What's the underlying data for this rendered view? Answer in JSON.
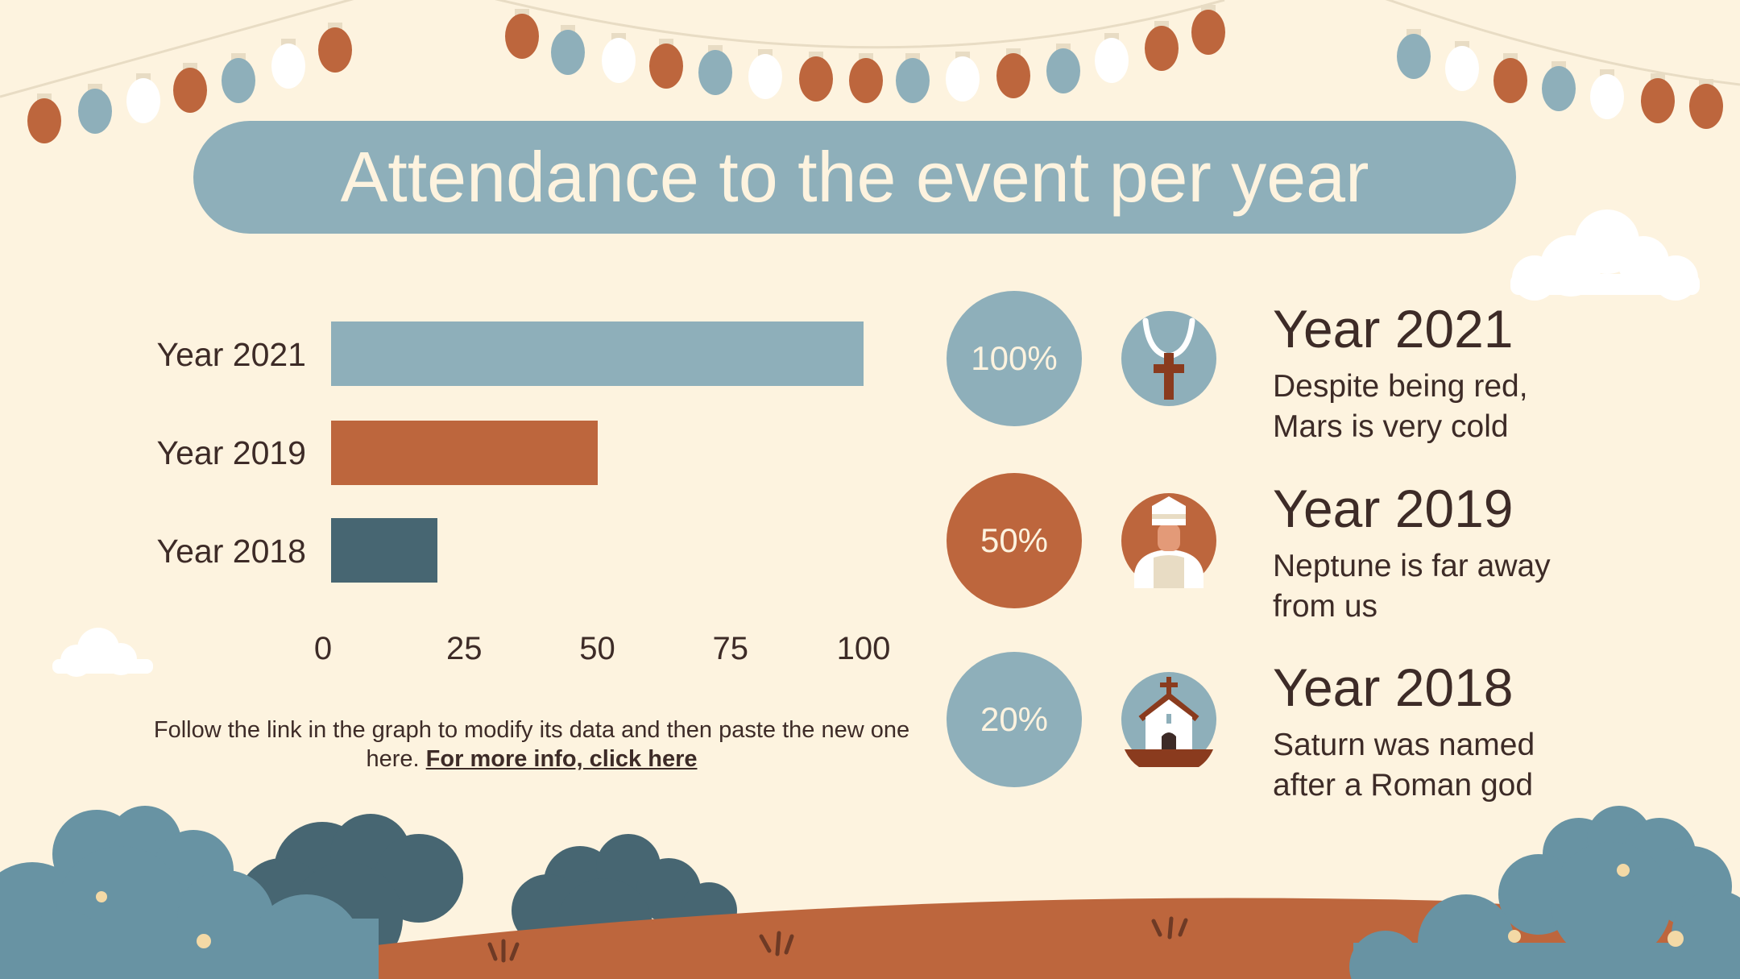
{
  "title": "Attendance to the event per year",
  "chart_data": {
    "type": "bar",
    "orientation": "horizontal",
    "categories": [
      "Year 2021",
      "Year 2019",
      "Year 2018"
    ],
    "values": [
      100,
      50,
      20
    ],
    "colors": [
      "#8eafba",
      "#bd663d",
      "#476672"
    ],
    "xlim": [
      0,
      100
    ],
    "xticks": [
      "0",
      "25",
      "50",
      "75",
      "100"
    ],
    "grid": false,
    "legend": "none"
  },
  "note": {
    "text": "Follow the link in the graph to modify its data and then paste the new one here. ",
    "link": "For more info, click here"
  },
  "stats": [
    {
      "percent": "100%",
      "year": "Year 2021",
      "line1": "Despite being red,",
      "line2": "Mars is very cold",
      "color": "#8eafba",
      "icon": "rosary-cross-icon"
    },
    {
      "percent": "50%",
      "year": "Year 2019",
      "line1": "Neptune is far away",
      "line2": "from us",
      "color": "#bd663d",
      "icon": "pope-icon"
    },
    {
      "percent": "20%",
      "year": "Year 2018",
      "line1": "Saturn was named",
      "line2": "after a Roman god",
      "color": "#8eafba",
      "icon": "church-icon"
    }
  ]
}
